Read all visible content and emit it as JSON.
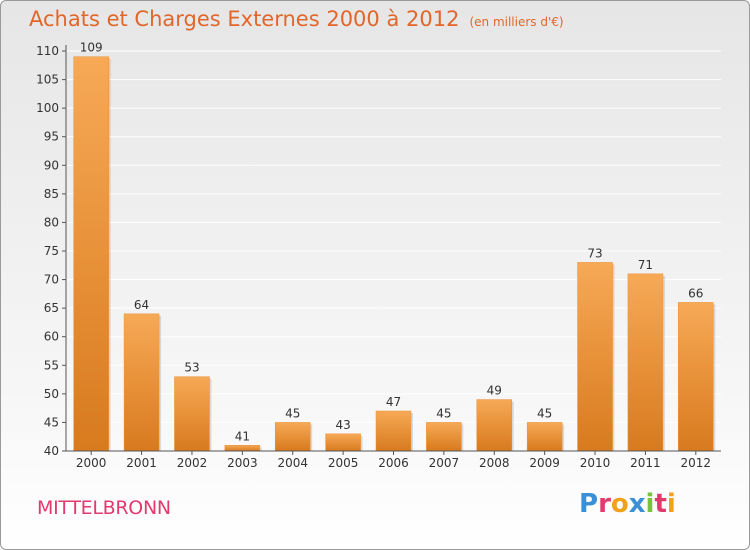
{
  "header": {
    "title": "Achats et Charges Externes 2000 à 2012",
    "subtitle": "(en milliers d'€)"
  },
  "footer": {
    "commune": "MITTELBRONN",
    "logo_letters": [
      {
        "char": "P",
        "color": "#3a8fd6"
      },
      {
        "char": "r",
        "color": "#e23a6e"
      },
      {
        "char": "o",
        "color": "#f0a21b"
      },
      {
        "char": "x",
        "color": "#3a8fd6"
      },
      {
        "char": "i",
        "color": "#7cc242"
      },
      {
        "char": "t",
        "color": "#e23a6e"
      },
      {
        "char": "i",
        "color": "#f0a21b"
      }
    ]
  },
  "colors": {
    "bar_top": "#f7a956",
    "bar_bottom": "#d87a1e",
    "axis": "#555555",
    "grid": "#ffffff"
  },
  "chart_data": {
    "type": "bar",
    "categories": [
      "2000",
      "2001",
      "2002",
      "2003",
      "2004",
      "2005",
      "2006",
      "2007",
      "2008",
      "2009",
      "2010",
      "2011",
      "2012"
    ],
    "values": [
      109,
      64,
      53,
      41,
      45,
      43,
      47,
      45,
      49,
      45,
      73,
      71,
      66
    ],
    "ylim": [
      40,
      110
    ],
    "yticks": [
      40,
      45,
      50,
      55,
      60,
      65,
      70,
      75,
      80,
      85,
      90,
      95,
      100,
      105,
      110
    ],
    "data_labels": true,
    "grid": true
  }
}
